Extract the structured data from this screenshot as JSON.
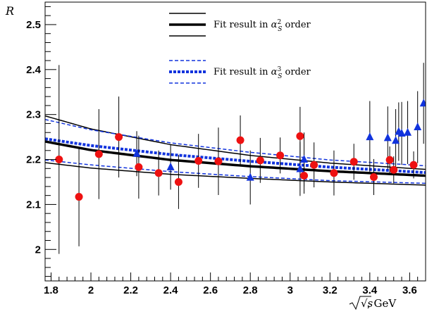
{
  "chart_data": {
    "type": "scatter",
    "xlabel_math": "√s",
    "xlabel_unit": ", GeV",
    "ylabel": "R",
    "xlim": [
      1.77,
      3.68
    ],
    "ylim": [
      1.93,
      2.55
    ],
    "x_ticks": [
      1.8,
      2.0,
      2.2,
      2.4,
      2.6,
      2.8,
      3.0,
      3.2,
      3.4,
      3.6
    ],
    "x_tick_labels": [
      "1.8",
      "2",
      "2.2",
      "2.4",
      "2.6",
      "2.8",
      "3",
      "3.2",
      "3.4",
      "3.6"
    ],
    "y_ticks": [
      2.0,
      2.1,
      2.2,
      2.3,
      2.4,
      2.5
    ],
    "y_tick_labels": [
      "2",
      "2.1",
      "2.2",
      "2.3",
      "2.4",
      "2.5"
    ],
    "grid": false,
    "legend_position": "top-center",
    "legend": [
      {
        "label_prefix": "Fit result in ",
        "label_math": "α",
        "label_sup": "2",
        "label_sub": "S",
        "label_suffix": " order",
        "style": "black-solid"
      },
      {
        "label_prefix": "Fit result in ",
        "label_math": "α",
        "label_sup": "3",
        "label_sub": "S",
        "label_suffix": " order",
        "style": "blue-dashed"
      }
    ],
    "series": [
      {
        "marker": "circle",
        "color": "#ee1111",
        "points": [
          {
            "x": 1.84,
            "y": 2.2,
            "err": 0.21
          },
          {
            "x": 1.94,
            "y": 2.117,
            "err": 0.11
          },
          {
            "x": 2.04,
            "y": 2.212,
            "err": 0.1
          },
          {
            "x": 2.14,
            "y": 2.25,
            "err": 0.09
          },
          {
            "x": 2.24,
            "y": 2.183,
            "err": 0.07
          },
          {
            "x": 2.34,
            "y": 2.17,
            "err": 0.05
          },
          {
            "x": 2.44,
            "y": 2.15,
            "err": 0.06
          },
          {
            "x": 2.54,
            "y": 2.197,
            "err": 0.06
          },
          {
            "x": 2.64,
            "y": 2.196,
            "err": 0.075
          },
          {
            "x": 2.75,
            "y": 2.243,
            "err": 0.055
          },
          {
            "x": 2.85,
            "y": 2.198,
            "err": 0.05
          },
          {
            "x": 2.95,
            "y": 2.209,
            "err": 0.04
          },
          {
            "x": 3.05,
            "y": 2.252,
            "err": 0.065
          },
          {
            "x": 3.07,
            "y": 2.164,
            "err": 0.04
          },
          {
            "x": 3.12,
            "y": 2.188,
            "err": 0.05
          },
          {
            "x": 3.22,
            "y": 2.17,
            "err": 0.05
          },
          {
            "x": 3.32,
            "y": 2.195,
            "err": 0.04
          },
          {
            "x": 3.42,
            "y": 2.161,
            "err": 0.04
          },
          {
            "x": 3.5,
            "y": 2.199,
            "err": 0.03
          },
          {
            "x": 3.52,
            "y": 2.177,
            "err": 0.03
          },
          {
            "x": 3.62,
            "y": 2.188,
            "err": 0.03
          }
        ]
      },
      {
        "marker": "triangle",
        "color": "#1133dd",
        "points": [
          {
            "x": 2.23,
            "y": 2.213,
            "err": 0.05
          },
          {
            "x": 2.4,
            "y": 2.183,
            "err": 0.05
          },
          {
            "x": 2.8,
            "y": 2.16,
            "err": 0.06
          },
          {
            "x": 3.05,
            "y": 2.179,
            "err": 0.06
          },
          {
            "x": 3.07,
            "y": 2.2,
            "err": 0.06
          },
          {
            "x": 3.4,
            "y": 2.25,
            "err": 0.08
          },
          {
            "x": 3.49,
            "y": 2.248,
            "err": 0.07
          },
          {
            "x": 3.53,
            "y": 2.242,
            "err": 0.07
          },
          {
            "x": 3.545,
            "y": 2.262,
            "err": 0.065
          },
          {
            "x": 3.56,
            "y": 2.258,
            "err": 0.07
          },
          {
            "x": 3.59,
            "y": 2.26,
            "err": 0.07
          },
          {
            "x": 3.64,
            "y": 2.272,
            "err": 0.08
          },
          {
            "x": 3.67,
            "y": 2.325,
            "err": 0.09
          }
        ]
      }
    ],
    "fit_alpha2": {
      "color": "#000000",
      "x": [
        1.77,
        2.0,
        2.4,
        2.8,
        3.2,
        3.68
      ],
      "central": [
        2.24,
        2.221,
        2.199,
        2.185,
        2.174,
        2.164
      ],
      "upper": [
        2.297,
        2.268,
        2.233,
        2.209,
        2.192,
        2.178
      ],
      "lower": [
        2.193,
        2.181,
        2.167,
        2.158,
        2.15,
        2.143
      ]
    },
    "fit_alpha3": {
      "color": "#1133dd",
      "x": [
        1.77,
        2.0,
        2.4,
        2.8,
        3.2,
        3.68
      ],
      "central": [
        2.246,
        2.231,
        2.211,
        2.196,
        2.183,
        2.171
      ],
      "upper": [
        2.289,
        2.266,
        2.237,
        2.216,
        2.199,
        2.186
      ],
      "lower": [
        2.199,
        2.188,
        2.173,
        2.162,
        2.153,
        2.147
      ]
    }
  }
}
